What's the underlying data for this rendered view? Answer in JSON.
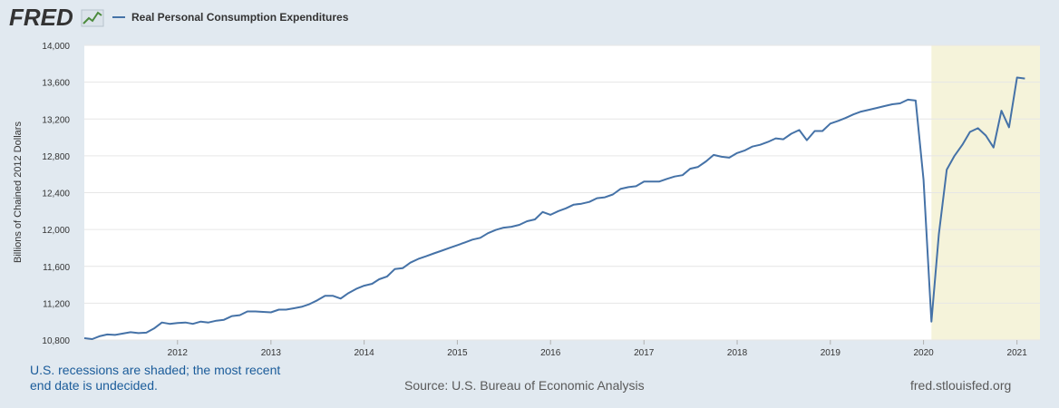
{
  "header": {
    "logo_text": "FRED",
    "legend_label": "Real Personal Consumption Expenditures"
  },
  "footer": {
    "recession_note": "U.S. recessions are shaded; the most recent end date is undecided.",
    "source": "Source: U.S. Bureau of Economic Analysis",
    "url": "fred.stlouisfed.org"
  },
  "colors": {
    "line": "#4572a7",
    "recession": "#f5f3da",
    "background": "#e1e9f0",
    "plot": "#ffffff"
  },
  "chart_data": {
    "type": "line",
    "ylabel": "Billions of Chained 2012 Dollars",
    "ylim": [
      10800,
      14000
    ],
    "yticks": [
      10800,
      11200,
      11600,
      12000,
      12400,
      12800,
      13200,
      13600,
      14000
    ],
    "ytick_labels": [
      "10,800",
      "11,200",
      "11,600",
      "12,000",
      "12,400",
      "12,800",
      "13,200",
      "13,600",
      "14,000"
    ],
    "xlim": [
      "2011-01-01",
      "2021-04-01"
    ],
    "xticks": [
      "2012",
      "2013",
      "2014",
      "2015",
      "2016",
      "2017",
      "2018",
      "2019",
      "2020",
      "2021"
    ],
    "grid": true,
    "recession": {
      "start": "2020-02-01",
      "end": "2021-04-01"
    },
    "series": [
      {
        "name": "Real Personal Consumption Expenditures",
        "start": "2011-01",
        "frequency": "monthly",
        "values": [
          10820,
          10810,
          10840,
          10860,
          10855,
          10870,
          10885,
          10875,
          10880,
          10925,
          10990,
          10975,
          10985,
          10990,
          10975,
          11000,
          10990,
          11010,
          11020,
          11060,
          11070,
          11110,
          11110,
          11105,
          11100,
          11130,
          11130,
          11145,
          11160,
          11190,
          11230,
          11280,
          11280,
          11250,
          11310,
          11355,
          11390,
          11410,
          11460,
          11490,
          11570,
          11580,
          11640,
          11680,
          11710,
          11740,
          11770,
          11800,
          11830,
          11860,
          11890,
          11910,
          11960,
          11995,
          12020,
          12030,
          12050,
          12090,
          12110,
          12190,
          12160,
          12200,
          12230,
          12270,
          12280,
          12300,
          12340,
          12350,
          12380,
          12440,
          12460,
          12470,
          12520,
          12520,
          12520,
          12550,
          12575,
          12590,
          12660,
          12680,
          12740,
          12810,
          12790,
          12780,
          12830,
          12860,
          12900,
          12920,
          12950,
          12990,
          12980,
          13040,
          13080,
          12970,
          13070,
          13070,
          13150,
          13180,
          13210,
          13250,
          13280,
          13300,
          13320,
          13340,
          13360,
          13370,
          13410,
          13400,
          12540,
          11000,
          11950,
          12650,
          12800,
          12920,
          13060,
          13100,
          13020,
          12890,
          13290,
          13110,
          13650,
          13640
        ]
      }
    ]
  }
}
